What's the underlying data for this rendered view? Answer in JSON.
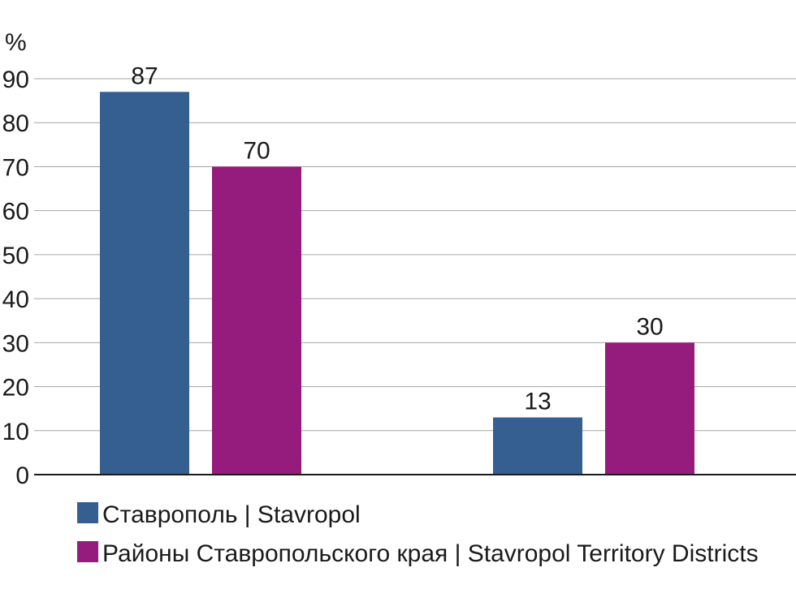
{
  "chart_data": {
    "type": "bar",
    "categories": [
      "",
      ""
    ],
    "series": [
      {
        "name": "Ставрополь | Stavropol",
        "values": [
          87,
          13
        ],
        "color": "#355e91"
      },
      {
        "name": "Районы Ставропольского края | Stavropol Territory Districts",
        "values": [
          70,
          30
        ],
        "color": "#951b7c"
      }
    ],
    "ylabel": "%",
    "xlabel": "",
    "title": "",
    "ylim": [
      0,
      90
    ],
    "yticks": [
      "0",
      "10",
      "20",
      "30",
      "40",
      "50",
      "60",
      "70",
      "80",
      "90"
    ],
    "grid": true,
    "data_labels": true,
    "legend_position": "bottom-left"
  }
}
